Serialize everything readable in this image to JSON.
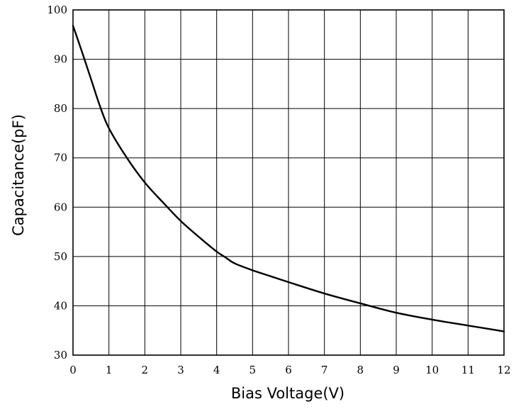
{
  "chart_data": {
    "type": "line",
    "title": "",
    "xlabel": "Bias Voltage(V)",
    "ylabel": "Capacitance(pF)",
    "xlim": [
      0,
      12
    ],
    "ylim": [
      30,
      100
    ],
    "xticks": [
      0,
      1,
      2,
      3,
      4,
      5,
      6,
      7,
      8,
      9,
      10,
      11,
      12
    ],
    "yticks": [
      30,
      40,
      50,
      60,
      70,
      80,
      90,
      100
    ],
    "grid": true,
    "legend": "none",
    "colors": {
      "line": "#000000",
      "grid": "#000000",
      "background": "#ffffff"
    },
    "series": [
      {
        "x": [
          0,
          0.25,
          0.5,
          0.75,
          1,
          1.5,
          2,
          2.5,
          3,
          3.5,
          4,
          4.25,
          4.5,
          5,
          5.5,
          6,
          7,
          8,
          9,
          10,
          11,
          12
        ],
        "y": [
          96.8,
          91.5,
          86.0,
          80.5,
          76.0,
          70.0,
          65.0,
          61.0,
          57.2,
          54.0,
          51.0,
          49.8,
          48.6,
          47.2,
          46.0,
          44.8,
          42.5,
          40.5,
          38.6,
          37.2,
          36.0,
          34.8
        ]
      }
    ]
  }
}
